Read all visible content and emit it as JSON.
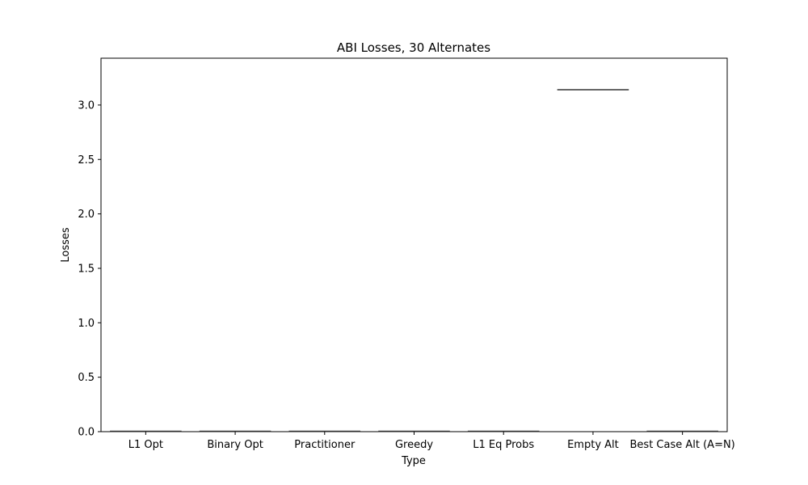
{
  "chart_data": {
    "type": "box",
    "title": "ABI Losses, 30 Alternates",
    "xlabel": "Type",
    "ylabel": "Losses",
    "ylim": [
      0,
      3.43
    ],
    "yticks": [
      "0.0",
      "0.5",
      "1.0",
      "1.5",
      "2.0",
      "2.5",
      "3.0"
    ],
    "categories": [
      "L1 Opt",
      "Binary Opt",
      "Practitioner",
      "Greedy",
      "L1 Eq Probs",
      "Empty Alt",
      "Best Case Alt (A=N)"
    ],
    "values": [
      0.0,
      0.0,
      0.0,
      0.0,
      0.0,
      3.14,
      0.0
    ],
    "grid": false,
    "legend": "none"
  },
  "colors": {
    "median_line": "#333333",
    "axes": "#000000"
  }
}
